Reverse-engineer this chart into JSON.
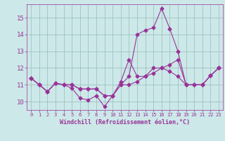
{
  "xlabel": "Windchill (Refroidissement éolien,°C)",
  "bg_color": "#cce8e8",
  "line_color": "#993399",
  "grid_color": "#99bbbb",
  "text_color": "#993399",
  "xlim": [
    -0.5,
    23.5
  ],
  "ylim": [
    9.5,
    15.8
  ],
  "yticks": [
    10,
    11,
    12,
    13,
    14,
    15
  ],
  "xticks": [
    0,
    1,
    2,
    3,
    4,
    5,
    6,
    7,
    8,
    9,
    10,
    11,
    12,
    13,
    14,
    15,
    16,
    17,
    18,
    19,
    20,
    21,
    22,
    23
  ],
  "lines": [
    [
      11.4,
      11.0,
      10.6,
      11.1,
      11.0,
      10.8,
      10.2,
      10.1,
      10.35,
      9.7,
      10.35,
      11.0,
      11.5,
      14.0,
      14.25,
      14.4,
      15.55,
      14.35,
      13.0,
      11.0,
      11.0,
      11.0,
      11.55,
      12.0
    ],
    [
      11.4,
      11.0,
      10.6,
      11.1,
      11.0,
      11.0,
      10.75,
      10.75,
      10.75,
      10.35,
      10.35,
      11.2,
      12.5,
      11.5,
      11.5,
      12.0,
      12.0,
      11.8,
      11.5,
      11.0,
      11.0,
      11.0,
      11.55,
      12.0
    ],
    [
      11.4,
      11.0,
      10.6,
      11.1,
      11.0,
      11.0,
      10.75,
      10.75,
      10.75,
      10.35,
      10.35,
      11.0,
      11.0,
      11.2,
      11.5,
      11.7,
      12.0,
      12.2,
      12.5,
      11.0,
      11.0,
      11.0,
      11.55,
      12.0
    ]
  ],
  "marker": "D",
  "markersize": 2.5,
  "linewidth": 0.8
}
